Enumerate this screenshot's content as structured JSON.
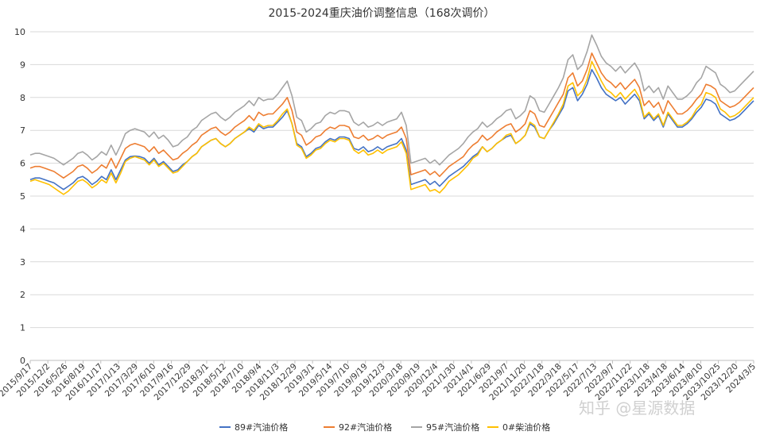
{
  "chart_data": {
    "type": "line",
    "title": "2015-2024重庆油价调整信息（168次调价）",
    "xlabel": "",
    "ylabel": "",
    "ylim": [
      0,
      10
    ],
    "y_ticks": [
      "0",
      "1",
      "2",
      "3",
      "4",
      "5",
      "6",
      "7",
      "8",
      "9",
      "10"
    ],
    "grid": "horizontal",
    "legend_position": "bottom",
    "x_tick_labels": [
      "2015/9/17",
      "2015/12/2",
      "2016/5/26",
      "2016/8/19",
      "2016/11/17",
      "2017/1/13",
      "2017/3/29",
      "2017/6/10",
      "2017/9/16",
      "2017/12/29",
      "2018/3/1",
      "2018/5/12",
      "2018/7/10",
      "2018/9/4",
      "2018/11/3",
      "2018/12/29",
      "2019/3/1",
      "2019/5/14",
      "2019/7/10",
      "2019/9/19",
      "2019/12/3",
      "2020/3/18",
      "2020/9/19",
      "2020/12/4",
      "2021/1/30",
      "2021/4/1",
      "2021/6/29",
      "2021/9/7",
      "2021/11/20",
      "2022/1/18",
      "2022/3/18",
      "2022/5/17",
      "2022/7/13",
      "2022/9/7",
      "2022/11/22",
      "2023/1/18",
      "2023/4/18",
      "2023/6/14",
      "2023/8/10",
      "2023/10/25",
      "2023/12/20",
      "2024/3/5"
    ],
    "series": [
      {
        "name": "89#汽油价格",
        "color": "#4472c4",
        "values": [
          5.5,
          5.55,
          5.55,
          5.5,
          5.45,
          5.4,
          5.3,
          5.2,
          5.3,
          5.4,
          5.55,
          5.6,
          5.5,
          5.35,
          5.45,
          5.6,
          5.5,
          5.8,
          5.5,
          5.8,
          6.1,
          6.2,
          6.22,
          6.2,
          6.15,
          6.0,
          6.15,
          5.95,
          6.05,
          5.9,
          5.75,
          5.8,
          5.95,
          6.05,
          6.2,
          6.3,
          6.5,
          6.6,
          6.7,
          6.75,
          6.6,
          6.5,
          6.6,
          6.75,
          6.85,
          6.95,
          7.05,
          6.95,
          7.15,
          7.05,
          7.1,
          7.1,
          7.25,
          7.4,
          7.6,
          7.2,
          6.6,
          6.5,
          6.2,
          6.3,
          6.45,
          6.5,
          6.65,
          6.75,
          6.7,
          6.8,
          6.8,
          6.75,
          6.45,
          6.4,
          6.5,
          6.35,
          6.4,
          6.5,
          6.4,
          6.5,
          6.55,
          6.6,
          6.75,
          6.4,
          5.35,
          5.4,
          5.45,
          5.5,
          5.35,
          5.45,
          5.3,
          5.45,
          5.6,
          5.7,
          5.8,
          5.9,
          6.05,
          6.2,
          6.3,
          6.5,
          6.35,
          6.45,
          6.6,
          6.7,
          6.8,
          6.85,
          6.6,
          6.7,
          6.85,
          7.2,
          7.1,
          6.8,
          6.75,
          7.0,
          7.2,
          7.45,
          7.7,
          8.2,
          8.3,
          7.9,
          8.1,
          8.4,
          8.85,
          8.6,
          8.3,
          8.1,
          8.0,
          7.9,
          8.0,
          7.8,
          7.95,
          8.1,
          7.9,
          7.35,
          7.5,
          7.3,
          7.45,
          7.1,
          7.5,
          7.3,
          7.1,
          7.1,
          7.2,
          7.35,
          7.55,
          7.7,
          7.95,
          7.9,
          7.8,
          7.5,
          7.4,
          7.3,
          7.35,
          7.45,
          7.6,
          7.75,
          7.9
        ]
      },
      {
        "name": "92#汽油价格",
        "color": "#ed7d31",
        "values": [
          5.85,
          5.9,
          5.9,
          5.85,
          5.8,
          5.75,
          5.65,
          5.55,
          5.65,
          5.75,
          5.9,
          5.95,
          5.85,
          5.7,
          5.8,
          5.95,
          5.85,
          6.15,
          5.85,
          6.15,
          6.45,
          6.55,
          6.6,
          6.55,
          6.5,
          6.35,
          6.5,
          6.3,
          6.4,
          6.25,
          6.1,
          6.15,
          6.3,
          6.4,
          6.55,
          6.65,
          6.85,
          6.95,
          7.05,
          7.1,
          6.95,
          6.85,
          6.95,
          7.1,
          7.2,
          7.3,
          7.45,
          7.3,
          7.55,
          7.45,
          7.5,
          7.5,
          7.65,
          7.8,
          8.0,
          7.6,
          6.95,
          6.85,
          6.55,
          6.65,
          6.8,
          6.85,
          7.0,
          7.1,
          7.05,
          7.15,
          7.15,
          7.1,
          6.8,
          6.75,
          6.85,
          6.7,
          6.75,
          6.85,
          6.75,
          6.85,
          6.9,
          6.95,
          7.1,
          6.75,
          5.65,
          5.7,
          5.75,
          5.8,
          5.65,
          5.75,
          5.6,
          5.75,
          5.9,
          6.0,
          6.1,
          6.2,
          6.4,
          6.55,
          6.65,
          6.85,
          6.7,
          6.8,
          6.95,
          7.05,
          7.15,
          7.2,
          6.95,
          7.05,
          7.2,
          7.6,
          7.5,
          7.15,
          7.1,
          7.35,
          7.6,
          7.85,
          8.1,
          8.6,
          8.75,
          8.35,
          8.5,
          8.85,
          9.35,
          9.05,
          8.75,
          8.55,
          8.45,
          8.3,
          8.45,
          8.25,
          8.4,
          8.55,
          8.3,
          7.75,
          7.9,
          7.7,
          7.85,
          7.5,
          7.9,
          7.7,
          7.5,
          7.5,
          7.6,
          7.75,
          7.95,
          8.1,
          8.4,
          8.35,
          8.25,
          7.9,
          7.8,
          7.7,
          7.75,
          7.85,
          8.0,
          8.15,
          8.3
        ]
      },
      {
        "name": "95#汽油价格",
        "color": "#a5a5a5",
        "values": [
          6.25,
          6.3,
          6.3,
          6.25,
          6.2,
          6.15,
          6.05,
          5.95,
          6.05,
          6.15,
          6.3,
          6.35,
          6.25,
          6.1,
          6.2,
          6.35,
          6.25,
          6.55,
          6.25,
          6.55,
          6.9,
          7.0,
          7.05,
          7.0,
          6.95,
          6.8,
          6.95,
          6.75,
          6.85,
          6.7,
          6.5,
          6.55,
          6.7,
          6.8,
          7.0,
          7.1,
          7.3,
          7.4,
          7.5,
          7.55,
          7.4,
          7.3,
          7.4,
          7.55,
          7.65,
          7.75,
          7.9,
          7.75,
          8.0,
          7.9,
          7.95,
          7.95,
          8.1,
          8.3,
          8.5,
          8.05,
          7.4,
          7.3,
          6.95,
          7.05,
          7.2,
          7.25,
          7.45,
          7.55,
          7.5,
          7.6,
          7.6,
          7.55,
          7.25,
          7.15,
          7.25,
          7.1,
          7.15,
          7.25,
          7.15,
          7.25,
          7.3,
          7.35,
          7.55,
          7.15,
          6.0,
          6.05,
          6.1,
          6.15,
          6.0,
          6.1,
          5.95,
          6.1,
          6.25,
          6.35,
          6.45,
          6.6,
          6.8,
          6.95,
          7.05,
          7.25,
          7.1,
          7.2,
          7.35,
          7.45,
          7.6,
          7.65,
          7.35,
          7.45,
          7.6,
          8.05,
          7.95,
          7.6,
          7.55,
          7.8,
          8.05,
          8.3,
          8.6,
          9.15,
          9.3,
          8.85,
          9.0,
          9.4,
          9.9,
          9.6,
          9.25,
          9.05,
          8.95,
          8.8,
          8.95,
          8.75,
          8.9,
          9.05,
          8.8,
          8.2,
          8.35,
          8.15,
          8.3,
          7.95,
          8.35,
          8.15,
          7.95,
          7.95,
          8.05,
          8.2,
          8.45,
          8.6,
          8.95,
          8.85,
          8.75,
          8.4,
          8.3,
          8.15,
          8.2,
          8.35,
          8.5,
          8.65,
          8.8
        ]
      },
      {
        "name": "0#柴油价格",
        "color": "#ffc000",
        "values": [
          5.45,
          5.5,
          5.45,
          5.4,
          5.35,
          5.25,
          5.15,
          5.05,
          5.15,
          5.3,
          5.45,
          5.5,
          5.4,
          5.25,
          5.35,
          5.5,
          5.4,
          5.7,
          5.4,
          5.7,
          6.05,
          6.15,
          6.2,
          6.15,
          6.1,
          5.95,
          6.1,
          5.9,
          6.0,
          5.85,
          5.7,
          5.75,
          5.9,
          6.05,
          6.2,
          6.3,
          6.5,
          6.6,
          6.7,
          6.75,
          6.6,
          6.5,
          6.6,
          6.75,
          6.85,
          6.95,
          7.1,
          7.0,
          7.2,
          7.1,
          7.15,
          7.15,
          7.3,
          7.5,
          7.65,
          7.2,
          6.55,
          6.45,
          6.15,
          6.25,
          6.4,
          6.45,
          6.6,
          6.7,
          6.65,
          6.75,
          6.75,
          6.7,
          6.4,
          6.3,
          6.4,
          6.25,
          6.3,
          6.4,
          6.3,
          6.4,
          6.45,
          6.5,
          6.65,
          6.3,
          5.2,
          5.25,
          5.3,
          5.35,
          5.15,
          5.2,
          5.1,
          5.25,
          5.45,
          5.55,
          5.65,
          5.8,
          5.95,
          6.15,
          6.25,
          6.5,
          6.35,
          6.45,
          6.6,
          6.7,
          6.85,
          6.9,
          6.6,
          6.7,
          6.85,
          7.25,
          7.15,
          6.8,
          6.75,
          7.0,
          7.25,
          7.5,
          7.8,
          8.35,
          8.45,
          8.05,
          8.2,
          8.55,
          9.1,
          8.8,
          8.5,
          8.25,
          8.15,
          8.0,
          8.15,
          7.95,
          8.1,
          8.25,
          8.0,
          7.4,
          7.55,
          7.35,
          7.5,
          7.15,
          7.55,
          7.35,
          7.15,
          7.15,
          7.25,
          7.4,
          7.65,
          7.8,
          8.15,
          8.1,
          8.0,
          7.65,
          7.55,
          7.4,
          7.45,
          7.55,
          7.7,
          7.85,
          8.0
        ]
      }
    ]
  },
  "watermark": "知乎 @星源数据"
}
